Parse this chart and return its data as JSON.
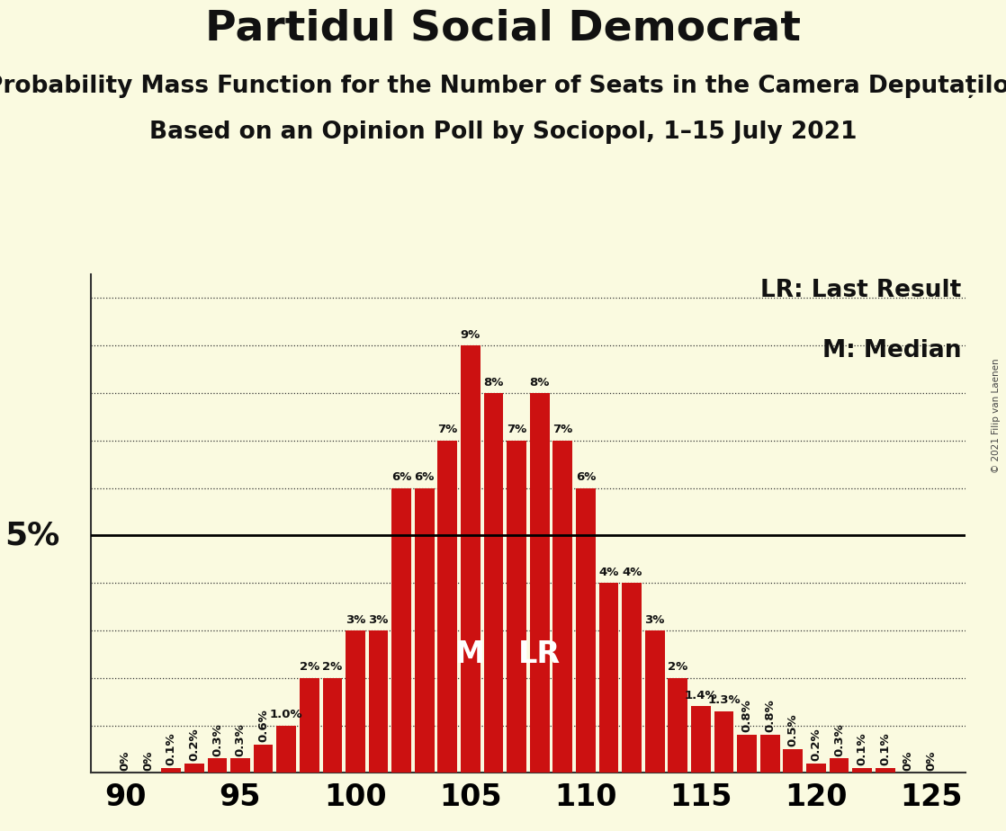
{
  "title": "Partidul Social Democrat",
  "subtitle1": "Probability Mass Function for the Number of Seats in the Camera Deputaților",
  "subtitle2": "Based on an Opinion Poll by Sociopol, 1–15 July 2021",
  "copyright": "© 2021 Filip van Laenen",
  "background_color": "#FAFAE0",
  "bar_color": "#CC1111",
  "seats": [
    90,
    91,
    92,
    93,
    94,
    95,
    96,
    97,
    98,
    99,
    100,
    101,
    102,
    103,
    104,
    105,
    106,
    107,
    108,
    109,
    110,
    111,
    112,
    113,
    114,
    115,
    116,
    117,
    118,
    119,
    120,
    121,
    122,
    123,
    124,
    125
  ],
  "probabilities": [
    0.0,
    0.0,
    0.1,
    0.2,
    0.3,
    0.3,
    0.6,
    1.0,
    2.0,
    2.0,
    3.0,
    3.0,
    6.0,
    6.0,
    7.0,
    9.0,
    8.0,
    7.0,
    8.0,
    7.0,
    6.0,
    4.0,
    4.0,
    3.0,
    2.0,
    1.4,
    1.3,
    0.8,
    0.8,
    0.5,
    0.2,
    0.3,
    0.1,
    0.1,
    0.0,
    0.0
  ],
  "bar_labels": [
    "0%",
    "0%",
    "0.1%",
    "0.2%",
    "0.3%",
    "0.3%",
    "0.6%",
    "1.0%",
    "2%",
    "2%",
    "3%",
    "3%",
    "6%",
    "6%",
    "7%",
    "9%",
    "8%",
    "7%",
    "8%",
    "7%",
    "6%",
    "4%",
    "4%",
    "3%",
    "2%",
    "1.4%",
    "1.3%",
    "0.8%",
    "0.8%",
    "0.5%",
    "0.2%",
    "0.3%",
    "0.1%",
    "0.1%",
    "0%",
    "0%"
  ],
  "median_seat": 105,
  "lr_seat": 108,
  "five_pct_level": 5.0,
  "xlim": [
    88.5,
    126.5
  ],
  "ylim": [
    0,
    10.5
  ],
  "ytick_dotted": [
    1,
    2,
    3,
    4,
    6,
    7,
    8,
    9,
    10
  ],
  "xtick_positions": [
    90,
    95,
    100,
    105,
    110,
    115,
    120,
    125
  ],
  "legend_lr_text": "LR: Last Result",
  "legend_m_text": "M: Median",
  "title_fontsize": 34,
  "subtitle_fontsize": 19,
  "axis_tick_fontsize": 24,
  "bar_label_fontsize": 9.5,
  "legend_fontsize": 19,
  "marker_fontsize": 24,
  "five_pct_fontsize": 26
}
